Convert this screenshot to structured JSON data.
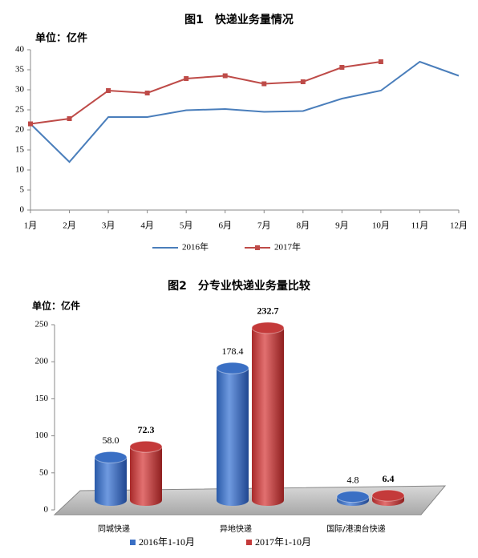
{
  "chart_data": [
    {
      "type": "line",
      "title": "图1　快递业务量情况",
      "unit_label": "单位：亿件",
      "categories": [
        "1月",
        "2月",
        "3月",
        "4月",
        "5月",
        "6月",
        "7月",
        "8月",
        "9月",
        "10月",
        "11月",
        "12月"
      ],
      "series": [
        {
          "name": "2016年",
          "color": "#4a7ebb",
          "values": [
            21.5,
            12,
            23.2,
            23.2,
            24.9,
            25.2,
            24.5,
            24.7,
            27.8,
            29.8,
            37,
            33.5
          ]
        },
        {
          "name": "2017年",
          "color": "#be4b48",
          "values": [
            21.5,
            22.8,
            29.8,
            29.2,
            32.8,
            33.5,
            31.5,
            32,
            35.6,
            37,
            null,
            null
          ]
        }
      ],
      "ylim": [
        0,
        40
      ],
      "yticks": [
        0,
        5,
        10,
        15,
        20,
        25,
        30,
        35,
        40
      ],
      "legend": "bottom"
    },
    {
      "type": "bar",
      "title": "图2　分专业快递业务量比较",
      "unit_label": "单位：亿件",
      "categories": [
        "同城快递",
        "异地快递",
        "国际/港澳台快递"
      ],
      "series": [
        {
          "name": "2016年1-10月",
          "color": "#3a6fc4",
          "values": [
            58.0,
            178.4,
            4.8
          ],
          "value_labels": [
            "58.0",
            "178.4",
            "4.8"
          ]
        },
        {
          "name": "2017年1-10月",
          "color": "#c43a3a",
          "values": [
            72.3,
            232.7,
            6.4
          ],
          "value_labels": [
            "72.3",
            "232.7",
            "6.4"
          ]
        }
      ],
      "ylim": [
        0,
        250
      ],
      "yticks": [
        0,
        50,
        100,
        150,
        200,
        250
      ],
      "legend": "bottom"
    }
  ]
}
